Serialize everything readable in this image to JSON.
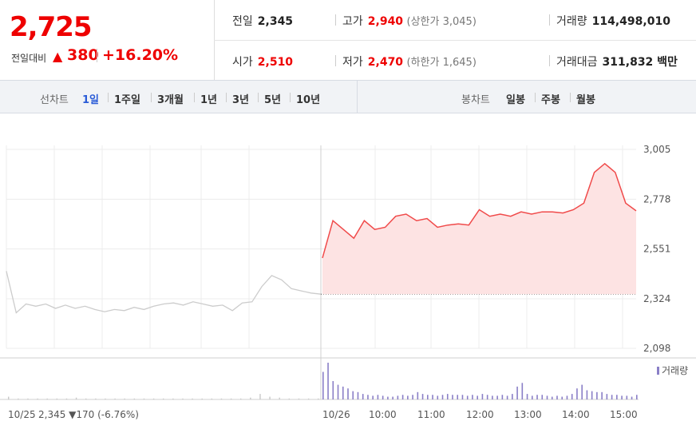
{
  "quote": {
    "price": "2,725",
    "change_label": "전일대비",
    "change_arrow": "▲",
    "change_value": "380",
    "change_pct": "+16.20%"
  },
  "stats": {
    "prev_label": "전일",
    "prev_value": "2,345",
    "high_label": "고가",
    "high_value": "2,940",
    "upper_limit": "(상한가 3,045)",
    "volume_label": "거래량",
    "volume_value": "114,498,010",
    "open_label": "시가",
    "open_value": "2,510",
    "low_label": "저가",
    "low_value": "2,470",
    "lower_limit": "(하한가 1,645)",
    "amount_label": "거래대금",
    "amount_value": "311,832 백만"
  },
  "tabs": {
    "line_label": "선차트",
    "periods": [
      "1일",
      "1주일",
      "3개월",
      "1년",
      "3년",
      "5년",
      "10년"
    ],
    "active_period": "1일",
    "candle_label": "봉차트",
    "candles": [
      "일봉",
      "주봉",
      "월봉"
    ]
  },
  "colors": {
    "up": "#e00000",
    "down": "#2a5bd7",
    "prev_day_line": "#cccccc",
    "fill": "#fde3e3"
  },
  "chart_data": {
    "type": "line",
    "y_ticks": [
      "3,005",
      "2,778",
      "2,551",
      "2,324",
      "2,098"
    ],
    "ylim": [
      2098,
      3005
    ],
    "reference_price": 2345,
    "volume_label": "거래량",
    "x_labels": [
      "10/25",
      "10/26",
      "10:00",
      "11:00",
      "12:00",
      "13:00",
      "14:00",
      "15:00"
    ],
    "prev_day_summary": {
      "date": "10/25",
      "close": "2,345",
      "arrow": "▼",
      "change": "170",
      "pct": "(-6.76%)"
    },
    "series": [
      {
        "day": "10/25",
        "values": [
          2450,
          2260,
          2300,
          2290,
          2300,
          2280,
          2295,
          2280,
          2290,
          2275,
          2265,
          2275,
          2270,
          2285,
          2275,
          2290,
          2300,
          2305,
          2295,
          2310,
          2300,
          2290,
          2295,
          2270,
          2305,
          2310,
          2380,
          2430,
          2410,
          2370,
          2360,
          2350,
          2345
        ]
      },
      {
        "day": "10/26",
        "values": [
          2510,
          2680,
          2640,
          2600,
          2680,
          2640,
          2650,
          2700,
          2710,
          2680,
          2690,
          2650,
          2660,
          2665,
          2660,
          2730,
          2700,
          2710,
          2700,
          2720,
          2710,
          2720,
          2720,
          2715,
          2730,
          2760,
          2900,
          2940,
          2900,
          2760,
          2725
        ]
      }
    ],
    "volume_prev": [
      3,
      1,
      1,
      1,
      1,
      1,
      1,
      2,
      1,
      1,
      1,
      1,
      1,
      1,
      1,
      1,
      1,
      1,
      1,
      1,
      1,
      1,
      1,
      1,
      1,
      2,
      6,
      3,
      2,
      1,
      1,
      1,
      1
    ],
    "volume_today": [
      30,
      40,
      20,
      16,
      14,
      12,
      9,
      8,
      6,
      5,
      4,
      5,
      4,
      3,
      3,
      4,
      5,
      4,
      5,
      8,
      6,
      5,
      5,
      4,
      5,
      6,
      5,
      5,
      5,
      4,
      5,
      4,
      6,
      5,
      4,
      4,
      5,
      4,
      6,
      14,
      18,
      6,
      4,
      5,
      5,
      4,
      3,
      4,
      3,
      4,
      6,
      12,
      16,
      10,
      9,
      8,
      8,
      6,
      5,
      5,
      4,
      4,
      3,
      5
    ]
  }
}
